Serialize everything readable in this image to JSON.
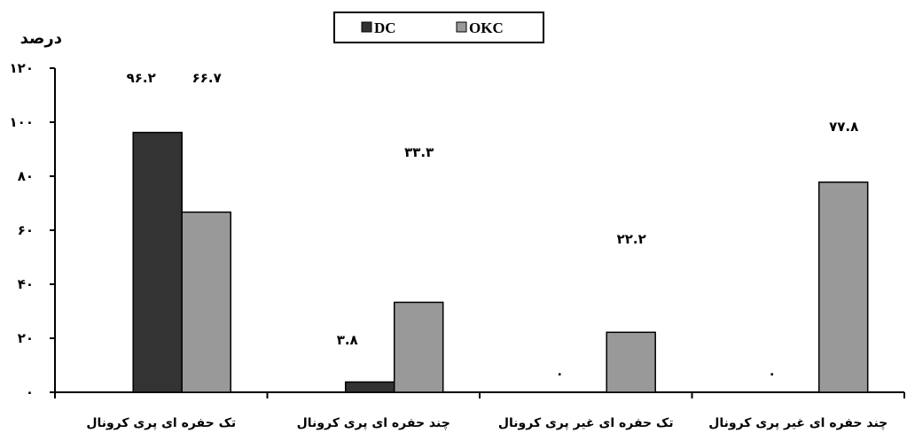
{
  "chart_data": {
    "type": "bar",
    "ylabel": "درصد",
    "ylim": [
      0,
      120
    ],
    "yticks": [
      0,
      20,
      40,
      60,
      80,
      100,
      120
    ],
    "ytick_labels": [
      "۰",
      "۲۰",
      "۴۰",
      "۶۰",
      "۸۰",
      "۱۰۰",
      "۱۲۰"
    ],
    "categories": [
      "تک حفره ای پری کرونال",
      "چند حفره ای پری کرونال",
      "تک حفره ای غیر پری کرونال",
      "چند حفره ای غیر پری کرونال"
    ],
    "series": [
      {
        "name": "DC",
        "color": "#333333",
        "values": [
          96.2,
          3.8,
          0,
          0
        ],
        "value_labels": [
          "۹۶.۲",
          "۳.۸",
          "۰",
          "۰"
        ]
      },
      {
        "name": "OKC",
        "color": "#999999",
        "values": [
          66.7,
          33.3,
          22.2,
          77.8
        ],
        "value_labels": [
          "۶۶.۷",
          "۳۳.۳",
          "۲۲.۲",
          "۷۷.۸"
        ]
      }
    ],
    "grid": false,
    "legend_position": "top-center"
  }
}
